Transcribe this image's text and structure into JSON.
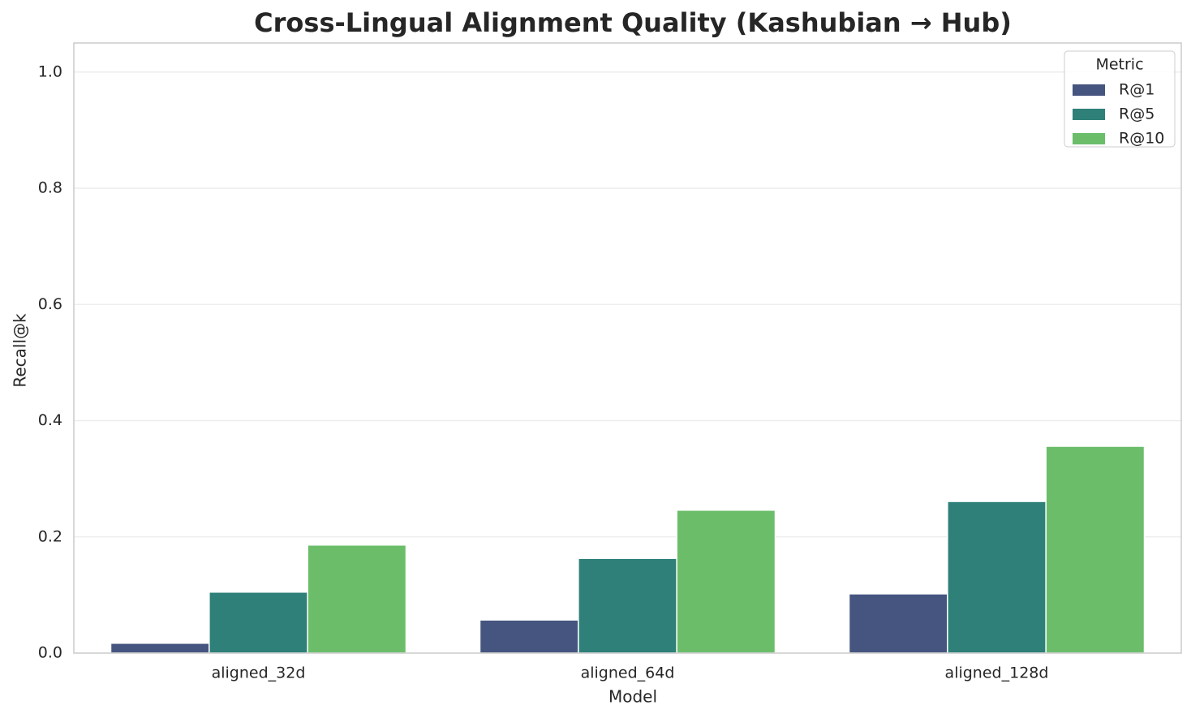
{
  "chart_data": {
    "type": "bar",
    "title": "Cross-Lingual Alignment Quality (Kashubian → Hub)",
    "x_label": "Model",
    "y_label": "Recall@k",
    "categories": [
      "aligned_32d",
      "aligned_64d",
      "aligned_128d"
    ],
    "series": [
      {
        "name": "R@1",
        "color": "#45557f",
        "values": [
          0.017,
          0.057,
          0.102
        ]
      },
      {
        "name": "R@5",
        "color": "#2e8079",
        "values": [
          0.105,
          0.163,
          0.261
        ]
      },
      {
        "name": "R@10",
        "color": "#6bbd6a",
        "values": [
          0.186,
          0.246,
          0.356
        ]
      }
    ],
    "legend_title": "Metric",
    "legend": "upper right",
    "ylim": [
      0,
      1.05
    ],
    "yticks": [
      {
        "value": 0,
        "label": "0.0"
      },
      0.2,
      0.4,
      0.6,
      0.8,
      {
        "value": 1,
        "label": "1.0"
      }
    ],
    "grid": true
  }
}
